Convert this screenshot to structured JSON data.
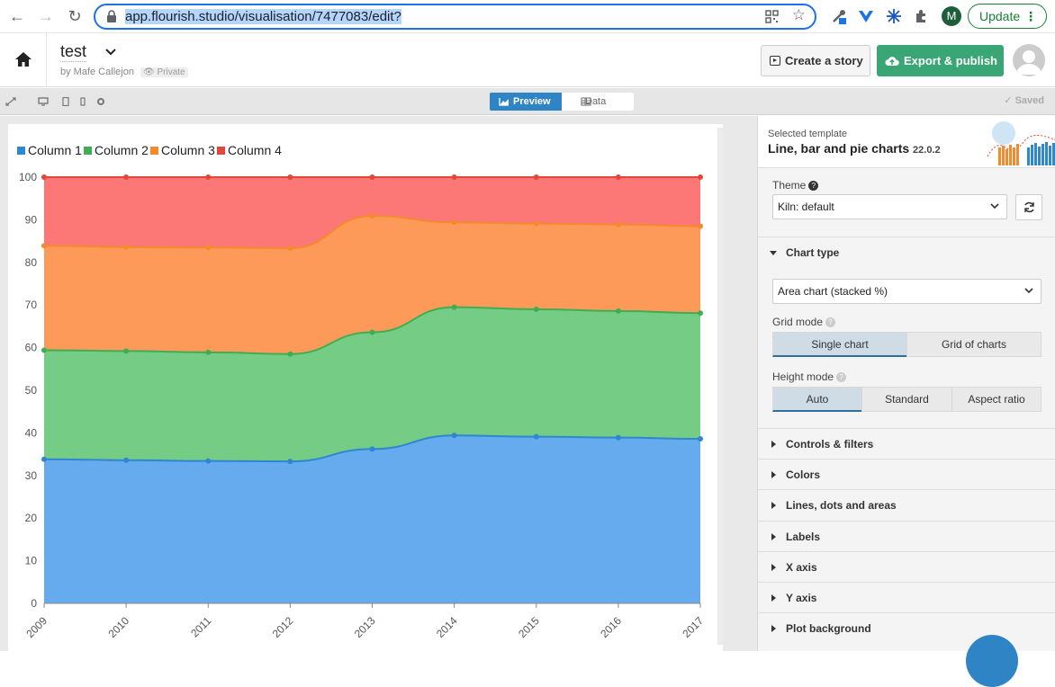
{
  "browser": {
    "url_host": "app.flourish.studio",
    "url_path": "/visualisation/7477083/edit?",
    "profile_initial": "M",
    "update_label": "Update"
  },
  "header": {
    "title": "test",
    "byline": "by Mafe Callejon",
    "privacy": "Private",
    "story_button": "Create a story",
    "export_button": "Export & publish"
  },
  "toolbar": {
    "preview_tab": "Preview",
    "data_tab": "Data",
    "status": "Saved"
  },
  "panel": {
    "template_label": "Selected template",
    "template_name": "Line, bar and pie charts",
    "template_version": "22.0.2",
    "theme_label": "Theme",
    "theme_value": "Kiln: default",
    "chart_type_heading": "Chart type",
    "chart_type_value": "Area chart (stacked %)",
    "grid_mode_label": "Grid mode",
    "grid_mode_options": [
      "Single chart",
      "Grid of charts"
    ],
    "grid_mode_selected": "Single chart",
    "height_mode_label": "Height mode",
    "height_mode_options": [
      "Auto",
      "Standard",
      "Aspect ratio"
    ],
    "height_mode_selected": "Auto",
    "sections": [
      "Controls & filters",
      "Colors",
      "Lines, dots and areas",
      "Labels",
      "X axis",
      "Y axis",
      "Plot background"
    ]
  },
  "chart_data": {
    "type": "area",
    "stacked": "percent",
    "x": [
      "2009",
      "2010",
      "2011",
      "2012",
      "2013",
      "2014",
      "2015",
      "2016",
      "2017"
    ],
    "series": [
      {
        "name": "Column 1",
        "color": "#2f86d1",
        "fill": "#65abee",
        "values": [
          33.8,
          33.6,
          33.4,
          33.3,
          36.2,
          39.4,
          39.1,
          38.9,
          38.6
        ]
      },
      {
        "name": "Column 2",
        "color": "#3fae53",
        "fill": "#75cc85",
        "values": [
          25.6,
          25.6,
          25.5,
          25.2,
          27.4,
          30.1,
          29.9,
          29.7,
          29.5
        ]
      },
      {
        "name": "Column 3",
        "color": "#f38a2e",
        "fill": "#fd9a5a",
        "values": [
          24.5,
          24.4,
          24.6,
          24.8,
          27.3,
          19.9,
          20.1,
          20.3,
          20.4
        ]
      },
      {
        "name": "Column 4",
        "color": "#e1483b",
        "fill": "#fc7876",
        "values": [
          16.1,
          16.4,
          16.5,
          16.7,
          9.1,
          10.6,
          10.9,
          11.1,
          11.5
        ]
      }
    ],
    "y_ticks": [
      "0",
      "10",
      "20",
      "30",
      "40",
      "50",
      "60",
      "70",
      "80",
      "90",
      "100"
    ],
    "ylim": [
      0,
      100
    ],
    "legend": "top-left",
    "grid": false
  }
}
